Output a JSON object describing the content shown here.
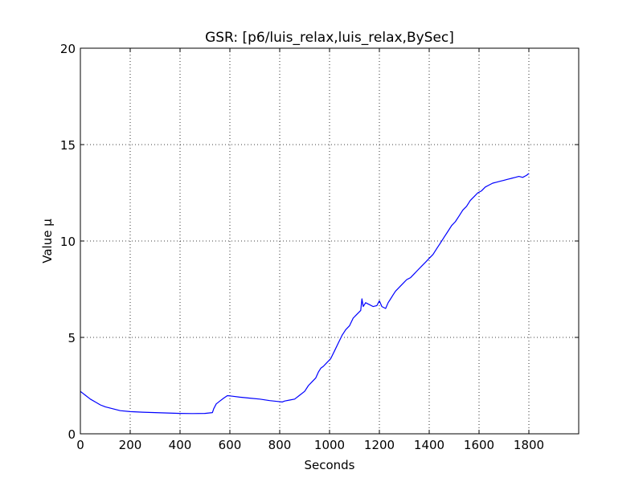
{
  "chart_data": {
    "type": "line",
    "title": "GSR: [p6/luis_relax,luis_relax,BySec]",
    "xlabel": "Seconds",
    "ylabel": "Value µ",
    "xlim": [
      0,
      2000
    ],
    "ylim": [
      0,
      20
    ],
    "x_ticks": [
      "0",
      "200",
      "400",
      "600",
      "800",
      "1000",
      "1200",
      "1400",
      "1600",
      "1800"
    ],
    "y_ticks": [
      "0",
      "5",
      "10",
      "15",
      "20"
    ],
    "grid": true,
    "grid_style": "dotted",
    "line_color": "#0000ff",
    "series": [
      {
        "x": [
          0,
          20,
          40,
          60,
          80,
          100,
          130,
          160,
          200,
          250,
          300,
          350,
          400,
          450,
          500,
          530,
          535,
          545,
          560,
          575,
          590,
          610,
          640,
          680,
          720,
          760,
          790,
          810,
          820,
          840,
          860,
          880,
          900,
          915,
          930,
          945,
          955,
          965,
          975,
          990,
          1005,
          1020,
          1035,
          1050,
          1065,
          1080,
          1095,
          1110,
          1125,
          1130,
          1135,
          1145,
          1160,
          1175,
          1190,
          1200,
          1210,
          1225,
          1235,
          1245,
          1255,
          1265,
          1280,
          1295,
          1310,
          1325,
          1340,
          1355,
          1370,
          1385,
          1400,
          1415,
          1430,
          1445,
          1460,
          1475,
          1490,
          1505,
          1520,
          1535,
          1550,
          1565,
          1580,
          1595,
          1610,
          1625,
          1640,
          1655,
          1670,
          1685,
          1700,
          1715,
          1730,
          1745,
          1760,
          1775,
          1790,
          1800
        ],
        "y": [
          2.2,
          2.0,
          1.8,
          1.65,
          1.5,
          1.4,
          1.3,
          1.2,
          1.15,
          1.12,
          1.1,
          1.08,
          1.06,
          1.05,
          1.06,
          1.1,
          1.3,
          1.55,
          1.7,
          1.85,
          1.98,
          1.95,
          1.9,
          1.85,
          1.8,
          1.72,
          1.68,
          1.65,
          1.7,
          1.75,
          1.8,
          2.0,
          2.2,
          2.5,
          2.7,
          2.9,
          3.2,
          3.4,
          3.5,
          3.7,
          3.9,
          4.3,
          4.7,
          5.1,
          5.4,
          5.6,
          6.0,
          6.2,
          6.4,
          7.0,
          6.6,
          6.8,
          6.7,
          6.6,
          6.65,
          6.9,
          6.6,
          6.5,
          6.8,
          7.0,
          7.2,
          7.4,
          7.6,
          7.8,
          8.0,
          8.1,
          8.3,
          8.5,
          8.7,
          8.9,
          9.1,
          9.3,
          9.6,
          9.9,
          10.2,
          10.5,
          10.8,
          11.0,
          11.3,
          11.6,
          11.8,
          12.1,
          12.3,
          12.5,
          12.6,
          12.8,
          12.9,
          13.0,
          13.05,
          13.1,
          13.15,
          13.2,
          13.25,
          13.3,
          13.35,
          13.3,
          13.4,
          13.5
        ]
      }
    ]
  }
}
